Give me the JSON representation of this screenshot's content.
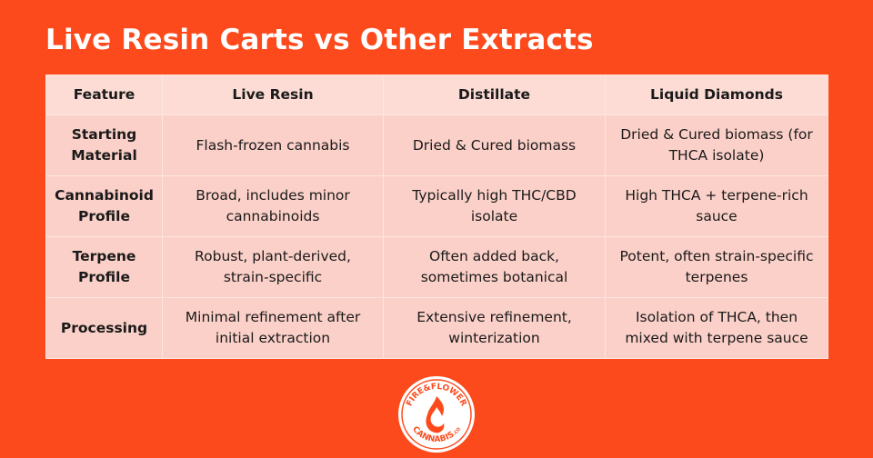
{
  "title": "Live Resin Carts vs Other Extracts",
  "table": {
    "header": [
      "Feature",
      "Live Resin",
      "Distillate",
      "Liquid Diamonds"
    ],
    "rows": [
      [
        "Starting Material",
        "Flash-frozen cannabis",
        "Dried & Cured biomass",
        "Dried & Cured biomass (for THCA isolate)"
      ],
      [
        "Cannabinoid Profile",
        "Broad, includes minor cannabinoids",
        "Typically high THC/CBD isolate",
        "High THCA + terpene-rich sauce"
      ],
      [
        "Terpene Profile",
        "Robust, plant-derived, strain-specific",
        "Often added back, sometimes botanical",
        "Potent, often strain-specific terpenes"
      ],
      [
        "Processing",
        "Minimal refinement after initial extraction",
        "Extensive refinement, winterization",
        "Isolation of THCA, then mixed with terpene sauce"
      ]
    ]
  },
  "logo": {
    "top": "FIRE&FLOWER",
    "bottom": "CANNABIS",
    "suffix": ".CO"
  }
}
